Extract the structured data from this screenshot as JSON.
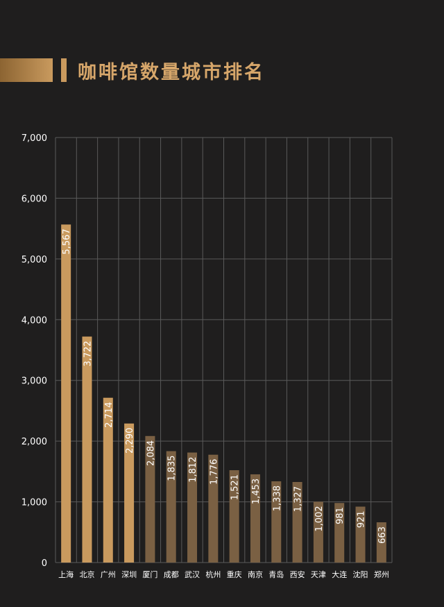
{
  "title": "咖啡馆数量城市排名",
  "chart_data": {
    "type": "bar",
    "categories": [
      "上海",
      "北京",
      "广州",
      "深圳",
      "厦门",
      "成都",
      "武汉",
      "杭州",
      "重庆",
      "南京",
      "青岛",
      "西安",
      "天津",
      "大连",
      "沈阳",
      "郑州"
    ],
    "values": [
      5567,
      3722,
      2714,
      2290,
      2084,
      1835,
      1812,
      1776,
      1521,
      1453,
      1338,
      1327,
      1002,
      981,
      921,
      663
    ],
    "value_labels": [
      "5,567",
      "3,722",
      "2,714",
      "2,290",
      "2,084",
      "1,835",
      "1,812",
      "1,776",
      "1,521",
      "1,453",
      "1,338",
      "1,327",
      "1,002",
      "981",
      "921",
      "663"
    ],
    "ylim": [
      0,
      7000
    ],
    "yticks": [
      0,
      1000,
      2000,
      3000,
      4000,
      5000,
      6000,
      7000
    ],
    "ytick_labels": [
      "0",
      "1,000",
      "2,000",
      "3,000",
      "4,000",
      "5,000",
      "6,000",
      "7,000"
    ],
    "grid": true,
    "colors": {
      "highlight": "#c99a5e",
      "regular": "#7a6043",
      "grid": "#5a5a5a",
      "background": "#1f1e1e"
    },
    "highlight_count": 4
  }
}
